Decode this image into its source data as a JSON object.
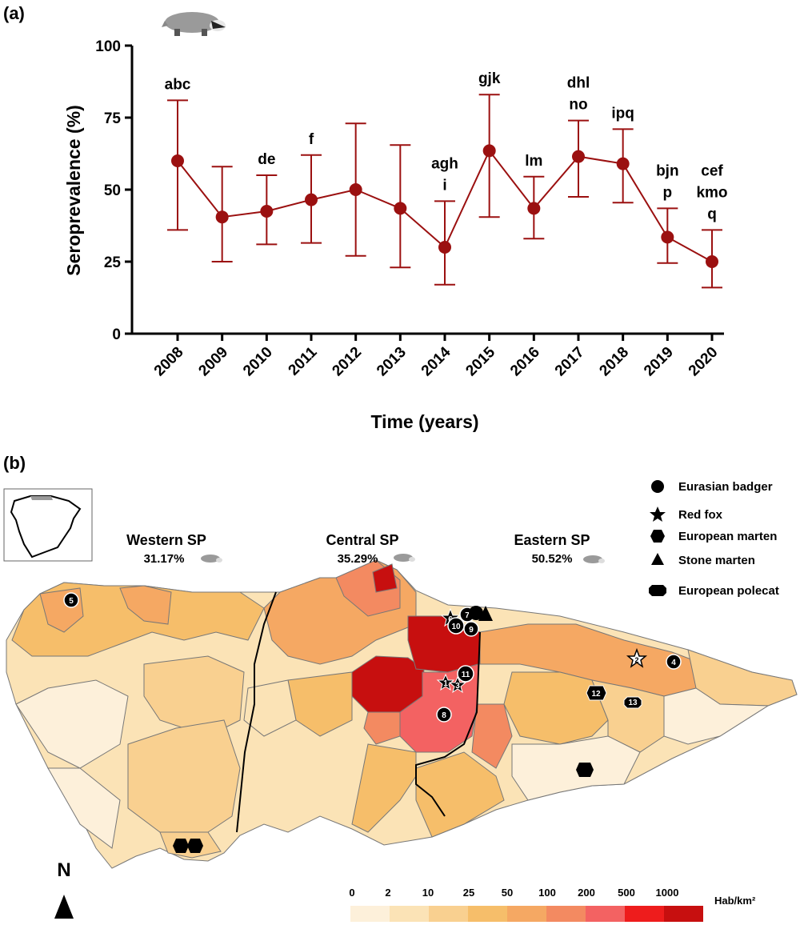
{
  "panels": {
    "a_label": "(a)",
    "b_label": "(b)"
  },
  "chart_data": {
    "type": "line",
    "ylabel": "Seroprevalence (%)",
    "xlabel": "Time (years)",
    "ylim": [
      0,
      100
    ],
    "yticks": [
      0,
      25,
      50,
      75,
      100
    ],
    "color": "#9b1010",
    "categories": [
      "2008",
      "2009",
      "2010",
      "2011",
      "2012",
      "2013",
      "2014",
      "2015",
      "2016",
      "2017",
      "2018",
      "2019",
      "2020"
    ],
    "series": [
      {
        "values": [
          60,
          40.5,
          42.5,
          46.5,
          50,
          43.5,
          30,
          63.5,
          43.5,
          61.5,
          59,
          33.5,
          25
        ],
        "err_low": [
          36,
          25,
          31,
          31.5,
          27,
          23,
          17,
          40.5,
          33,
          47.5,
          45.5,
          24.5,
          16
        ],
        "err_high": [
          81,
          58,
          55,
          62,
          73,
          65.5,
          46,
          83,
          54.5,
          74,
          71,
          43.5,
          36
        ]
      }
    ],
    "annotations": [
      {
        "category": "2008",
        "lines": [
          "abc"
        ]
      },
      {
        "category": "2010",
        "lines": [
          "de"
        ]
      },
      {
        "category": "2011",
        "lines": [
          "f"
        ]
      },
      {
        "category": "2014",
        "lines": [
          "agh",
          "i"
        ]
      },
      {
        "category": "2015",
        "lines": [
          "gjk"
        ]
      },
      {
        "category": "2016",
        "lines": [
          "lm"
        ]
      },
      {
        "category": "2017",
        "lines": [
          "dhl",
          "no"
        ]
      },
      {
        "category": "2018",
        "lines": [
          "ipq"
        ]
      },
      {
        "category": "2019",
        "lines": [
          "bjn",
          "p"
        ]
      },
      {
        "category": "2020",
        "lines": [
          "cef",
          "kmo",
          "q"
        ]
      }
    ]
  },
  "map": {
    "north_label": "N",
    "regions": [
      {
        "name": "Western SP",
        "value": "31.17%"
      },
      {
        "name": "Central SP",
        "value": "35.29%"
      },
      {
        "name": "Eastern SP",
        "value": "50.52%"
      }
    ],
    "legend": [
      {
        "label": "Eurasian badger",
        "icon": "circle"
      },
      {
        "label": "Red fox",
        "icon": "star"
      },
      {
        "label": "European marten",
        "icon": "hexagon"
      },
      {
        "label": "Stone marten",
        "icon": "triangle"
      },
      {
        "label": "European polecat",
        "icon": "octagon"
      }
    ],
    "scale": {
      "unit": "Hab/km²",
      "breaks": [
        "0",
        "2",
        "10",
        "25",
        "50",
        "100",
        "200",
        "500",
        "1000"
      ],
      "colors": [
        "#fdf0da",
        "#fbe3b6",
        "#f9d090",
        "#f6be6a",
        "#f5a863",
        "#f38a61",
        "#f36262",
        "#ee1c1c",
        "#c70f0f"
      ]
    },
    "sites": [
      "1",
      "2",
      "3",
      "4",
      "5",
      "6",
      "7",
      "8",
      "9",
      "10",
      "11",
      "12",
      "13"
    ]
  }
}
